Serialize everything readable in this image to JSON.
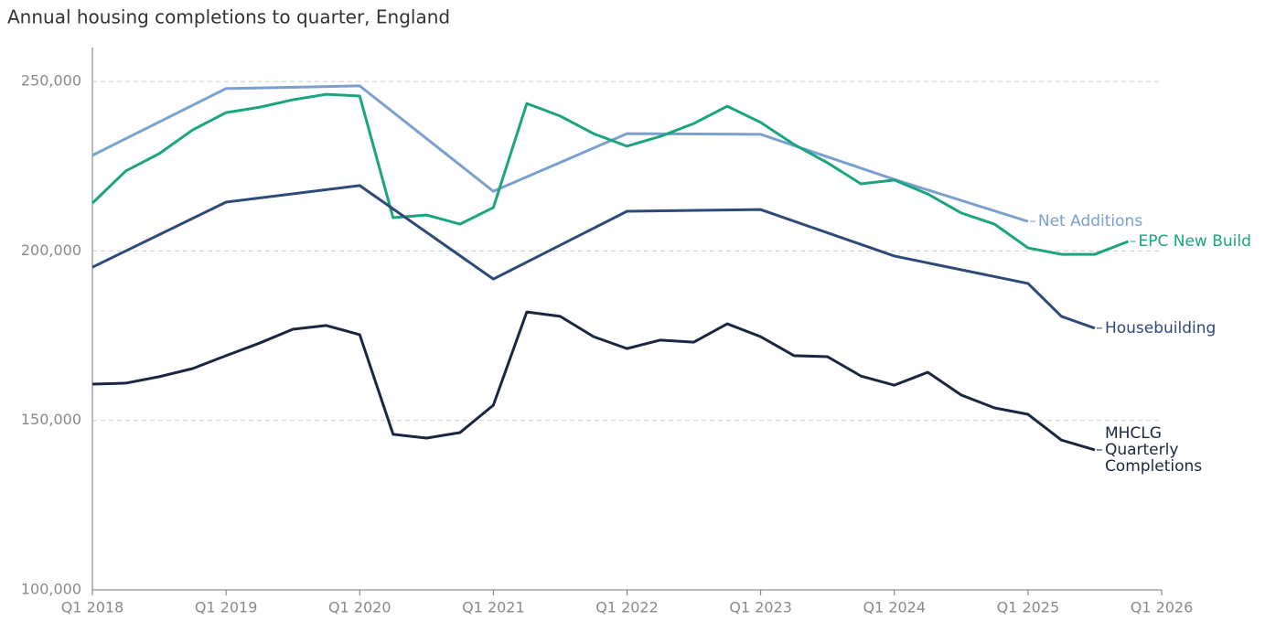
{
  "chart_data": {
    "type": "line",
    "title": "Annual housing completions to quarter, England",
    "xlim": [
      2018,
      2026
    ],
    "xticks": [
      {
        "value": 2018,
        "label": "Q1 2018"
      },
      {
        "value": 2019,
        "label": "Q1 2019"
      },
      {
        "value": 2020,
        "label": "Q1 2020"
      },
      {
        "value": 2021,
        "label": "Q1 2021"
      },
      {
        "value": 2022,
        "label": "Q1 2022"
      },
      {
        "value": 2023,
        "label": "Q1 2023"
      },
      {
        "value": 2024,
        "label": "Q1 2024"
      },
      {
        "value": 2025,
        "label": "Q1 2025"
      },
      {
        "value": 2026,
        "label": "Q1 2026"
      }
    ],
    "ylim": [
      100000,
      260000
    ],
    "yticks": [
      {
        "value": 100000,
        "label": "100,000"
      },
      {
        "value": 150000,
        "label": "150,000"
      },
      {
        "value": 200000,
        "label": "200,000"
      },
      {
        "value": 250000,
        "label": "250,000"
      }
    ],
    "grid": true,
    "series": [
      {
        "name": "Net Additions",
        "color": "#7ba0cf",
        "x": [
          2018,
          2019,
          2020,
          2021,
          2022,
          2023,
          2024,
          2025
        ],
        "values": [
          228200,
          247900,
          248700,
          217600,
          234600,
          234400,
          221100,
          208700
        ]
      },
      {
        "name": "EPC New Build",
        "color": "#1aa57f",
        "x": [
          2018,
          2018.25,
          2018.5,
          2018.75,
          2019,
          2019.25,
          2019.5,
          2019.75,
          2020,
          2020.25,
          2020.5,
          2020.75,
          2021,
          2021.25,
          2021.5,
          2021.75,
          2022,
          2022.25,
          2022.5,
          2022.75,
          2023,
          2023.25,
          2023.5,
          2023.75,
          2024,
          2024.25,
          2024.5,
          2024.75,
          2025,
          2025.25,
          2025.5,
          2025.75
        ],
        "values": [
          214100,
          223600,
          228700,
          235700,
          240800,
          242400,
          244600,
          246200,
          245700,
          209800,
          210600,
          207900,
          212800,
          243500,
          239800,
          234600,
          230900,
          233800,
          237600,
          242700,
          237900,
          231400,
          226000,
          219800,
          220900,
          216800,
          211200,
          207900,
          200900,
          199000,
          199000,
          202800
        ]
      },
      {
        "name": "Housebuilding",
        "color": "#2e4a78",
        "x": [
          2018,
          2019,
          2020,
          2021,
          2022,
          2023,
          2024,
          2025,
          2025.25,
          2025.5
        ],
        "values": [
          195200,
          214400,
          219300,
          191700,
          211700,
          212200,
          198500,
          190400,
          180700,
          177200
        ]
      },
      {
        "name": "MHCLG Quarterly Completions",
        "color": "#1a2740",
        "x": [
          2018,
          2018.25,
          2018.5,
          2018.75,
          2019,
          2019.25,
          2019.5,
          2019.75,
          2020,
          2020.25,
          2020.5,
          2020.75,
          2021,
          2021.25,
          2021.5,
          2021.75,
          2022,
          2022.25,
          2022.5,
          2022.75,
          2023,
          2023.25,
          2023.5,
          2023.75,
          2024,
          2024.25,
          2024.5,
          2024.75,
          2025,
          2025.25,
          2025.5
        ],
        "values": [
          160700,
          161000,
          162900,
          165300,
          169100,
          172800,
          176900,
          178000,
          175300,
          145900,
          144800,
          146400,
          154500,
          182000,
          180700,
          174700,
          171200,
          173700,
          173100,
          178500,
          174700,
          169100,
          168800,
          163100,
          160400,
          164200,
          157500,
          153700,
          151800,
          144200,
          141300
        ]
      }
    ]
  }
}
